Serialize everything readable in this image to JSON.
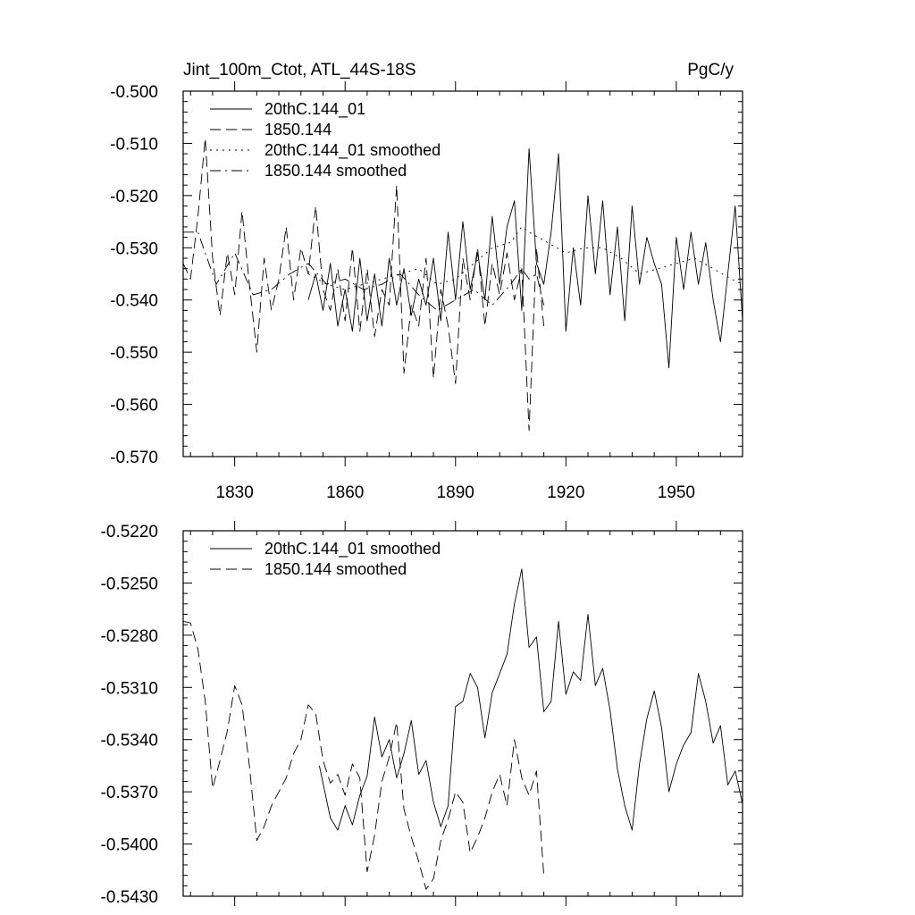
{
  "chart_data": [
    {
      "type": "line",
      "title_left": "Jint_100m_Ctot, ATL_44S-18S",
      "title_right": "PgC/y",
      "xlabel": "",
      "ylabel": "",
      "xlim": [
        1816,
        1968
      ],
      "ylim": [
        -0.57,
        -0.5
      ],
      "x_ticks": [
        1830,
        1860,
        1890,
        1920,
        1950
      ],
      "x_tick_labels": [
        "1830",
        "1860",
        "1890",
        "1920",
        "1950"
      ],
      "y_ticks": [
        -0.5,
        -0.51,
        -0.52,
        -0.53,
        -0.54,
        -0.55,
        -0.56,
        -0.57
      ],
      "y_tick_labels": [
        "-0.500",
        "-0.510",
        "-0.520",
        "-0.530",
        "-0.540",
        "-0.550",
        "-0.560",
        "-0.570"
      ],
      "legend_position": "top-left",
      "series": [
        {
          "name": "20thC.144_01",
          "style": "solid",
          "x": [
            1850,
            1852,
            1854,
            1856,
            1858,
            1860,
            1862,
            1864,
            1866,
            1868,
            1870,
            1872,
            1874,
            1876,
            1878,
            1880,
            1882,
            1884,
            1886,
            1888,
            1890,
            1892,
            1894,
            1896,
            1898,
            1900,
            1902,
            1904,
            1906,
            1908,
            1910,
            1912,
            1914,
            1916,
            1918,
            1920,
            1922,
            1924,
            1926,
            1928,
            1930,
            1932,
            1934,
            1936,
            1938,
            1940,
            1942,
            1944,
            1946,
            1948,
            1950,
            1952,
            1954,
            1956,
            1958,
            1960,
            1962,
            1964,
            1966,
            1968
          ],
          "values": [
            -0.54,
            -0.535,
            -0.542,
            -0.533,
            -0.545,
            -0.538,
            -0.546,
            -0.532,
            -0.544,
            -0.535,
            -0.545,
            -0.532,
            -0.541,
            -0.534,
            -0.543,
            -0.536,
            -0.541,
            -0.532,
            -0.544,
            -0.527,
            -0.54,
            -0.525,
            -0.538,
            -0.531,
            -0.54,
            -0.524,
            -0.537,
            -0.526,
            -0.521,
            -0.542,
            -0.511,
            -0.533,
            -0.537,
            -0.527,
            -0.512,
            -0.546,
            -0.53,
            -0.541,
            -0.52,
            -0.535,
            -0.521,
            -0.539,
            -0.526,
            -0.544,
            -0.522,
            -0.537,
            -0.528,
            -0.533,
            -0.537,
            -0.553,
            -0.528,
            -0.538,
            -0.527,
            -0.537,
            -0.529,
            -0.54,
            -0.548,
            -0.535,
            -0.522,
            -0.544
          ]
        },
        {
          "name": "1850.144",
          "style": "dashed",
          "x": [
            1816,
            1818,
            1820,
            1822,
            1824,
            1826,
            1828,
            1830,
            1832,
            1834,
            1836,
            1838,
            1840,
            1842,
            1844,
            1846,
            1848,
            1850,
            1852,
            1854,
            1856,
            1858,
            1860,
            1862,
            1864,
            1866,
            1868,
            1870,
            1872,
            1874,
            1876,
            1878,
            1880,
            1882,
            1884,
            1886,
            1888,
            1890,
            1892,
            1894,
            1896,
            1898,
            1900,
            1902,
            1904,
            1906,
            1908,
            1910,
            1912,
            1914
          ],
          "values": [
            -0.533,
            -0.536,
            -0.524,
            -0.509,
            -0.532,
            -0.543,
            -0.531,
            -0.539,
            -0.523,
            -0.537,
            -0.55,
            -0.532,
            -0.542,
            -0.536,
            -0.526,
            -0.54,
            -0.53,
            -0.535,
            -0.522,
            -0.538,
            -0.542,
            -0.534,
            -0.544,
            -0.53,
            -0.546,
            -0.534,
            -0.547,
            -0.538,
            -0.541,
            -0.518,
            -0.554,
            -0.541,
            -0.545,
            -0.532,
            -0.555,
            -0.538,
            -0.545,
            -0.556,
            -0.532,
            -0.54,
            -0.53,
            -0.545,
            -0.533,
            -0.539,
            -0.531,
            -0.54,
            -0.534,
            -0.565,
            -0.53,
            -0.545
          ]
        },
        {
          "name": "20thC.144_01 smoothed",
          "style": "dotted",
          "x": [
            1850,
            1855,
            1860,
            1865,
            1870,
            1875,
            1880,
            1885,
            1890,
            1895,
            1900,
            1905,
            1908,
            1910,
            1915,
            1920,
            1925,
            1930,
            1935,
            1940,
            1945,
            1950,
            1955,
            1960,
            1965,
            1968
          ],
          "values": [
            -0.535,
            -0.537,
            -0.538,
            -0.537,
            -0.536,
            -0.535,
            -0.534,
            -0.537,
            -0.536,
            -0.533,
            -0.53,
            -0.529,
            -0.526,
            -0.527,
            -0.529,
            -0.531,
            -0.53,
            -0.53,
            -0.532,
            -0.535,
            -0.534,
            -0.533,
            -0.532,
            -0.534,
            -0.536,
            -0.537
          ]
        },
        {
          "name": "1850.144 smoothed",
          "style": "dashdot",
          "x": [
            1816,
            1820,
            1825,
            1830,
            1835,
            1840,
            1845,
            1850,
            1855,
            1860,
            1865,
            1870,
            1875,
            1880,
            1885,
            1890,
            1895,
            1900,
            1905,
            1908,
            1910,
            1912,
            1914
          ],
          "values": [
            -0.527,
            -0.527,
            -0.537,
            -0.531,
            -0.539,
            -0.538,
            -0.535,
            -0.533,
            -0.537,
            -0.536,
            -0.538,
            -0.537,
            -0.535,
            -0.539,
            -0.542,
            -0.54,
            -0.538,
            -0.541,
            -0.537,
            -0.534,
            -0.536,
            -0.535,
            -0.541
          ]
        }
      ]
    },
    {
      "type": "line",
      "title_left": "",
      "title_right": "",
      "xlabel": "",
      "ylabel": "",
      "xlim": [
        1816,
        1968
      ],
      "ylim": [
        -0.543,
        -0.522
      ],
      "x_ticks": [
        1830,
        1860,
        1890,
        1920,
        1950
      ],
      "x_tick_labels": [],
      "y_ticks": [
        -0.522,
        -0.525,
        -0.528,
        -0.531,
        -0.534,
        -0.537,
        -0.54,
        -0.543
      ],
      "y_tick_labels": [
        "-0.5220",
        "-0.5250",
        "-0.5280",
        "-0.5310",
        "-0.5340",
        "-0.5370",
        "-0.5400",
        "-0.5430"
      ],
      "legend_position": "top-left",
      "series": [
        {
          "name": "20thC.144_01 smoothed",
          "style": "solid",
          "x": [
            1853,
            1856,
            1858,
            1860,
            1862,
            1864,
            1866,
            1868,
            1870,
            1872,
            1874,
            1876,
            1878,
            1880,
            1882,
            1884,
            1886,
            1888,
            1890,
            1892,
            1894,
            1896,
            1898,
            1900,
            1902,
            1904,
            1906,
            1908,
            1910,
            1912,
            1914,
            1916,
            1918,
            1920,
            1922,
            1924,
            1926,
            1928,
            1930,
            1932,
            1934,
            1936,
            1938,
            1940,
            1942,
            1944,
            1946,
            1948,
            1950,
            1952,
            1954,
            1956,
            1958,
            1960,
            1962,
            1964,
            1966,
            1968
          ],
          "values": [
            -0.5355,
            -0.5385,
            -0.5392,
            -0.5378,
            -0.5389,
            -0.5372,
            -0.5361,
            -0.5327,
            -0.535,
            -0.534,
            -0.5362,
            -0.5348,
            -0.5329,
            -0.536,
            -0.5352,
            -0.5376,
            -0.539,
            -0.5378,
            -0.5321,
            -0.5318,
            -0.5302,
            -0.531,
            -0.5339,
            -0.5313,
            -0.5302,
            -0.5291,
            -0.5262,
            -0.5242,
            -0.5287,
            -0.5281,
            -0.5324,
            -0.5318,
            -0.5272,
            -0.5314,
            -0.5301,
            -0.5306,
            -0.5268,
            -0.5309,
            -0.5299,
            -0.5323,
            -0.5357,
            -0.5378,
            -0.5392,
            -0.5354,
            -0.5328,
            -0.5312,
            -0.5333,
            -0.537,
            -0.5354,
            -0.5343,
            -0.5336,
            -0.5302,
            -0.5318,
            -0.5342,
            -0.5332,
            -0.5366,
            -0.5358,
            -0.5377
          ]
        },
        {
          "name": "1850.144 smoothed",
          "style": "dashed",
          "x": [
            1816,
            1818,
            1820,
            1822,
            1824,
            1826,
            1828,
            1830,
            1832,
            1834,
            1836,
            1838,
            1840,
            1842,
            1844,
            1846,
            1848,
            1850,
            1852,
            1854,
            1856,
            1858,
            1860,
            1862,
            1864,
            1866,
            1868,
            1870,
            1872,
            1874,
            1876,
            1878,
            1880,
            1882,
            1884,
            1886,
            1888,
            1890,
            1892,
            1894,
            1896,
            1898,
            1900,
            1902,
            1904,
            1906,
            1908,
            1910,
            1912,
            1914
          ],
          "values": [
            -0.5272,
            -0.5273,
            -0.5288,
            -0.5318,
            -0.5368,
            -0.5352,
            -0.5335,
            -0.5309,
            -0.532,
            -0.5355,
            -0.5398,
            -0.539,
            -0.5378,
            -0.537,
            -0.5362,
            -0.5348,
            -0.534,
            -0.532,
            -0.5325,
            -0.5352,
            -0.5365,
            -0.536,
            -0.5372,
            -0.5354,
            -0.5362,
            -0.5416,
            -0.5395,
            -0.5364,
            -0.535,
            -0.533,
            -0.538,
            -0.5396,
            -0.541,
            -0.5426,
            -0.542,
            -0.5398,
            -0.5386,
            -0.537,
            -0.5376,
            -0.5405,
            -0.5396,
            -0.5385,
            -0.537,
            -0.536,
            -0.5378,
            -0.534,
            -0.5362,
            -0.5372,
            -0.5358,
            -0.5418
          ]
        }
      ]
    }
  ]
}
